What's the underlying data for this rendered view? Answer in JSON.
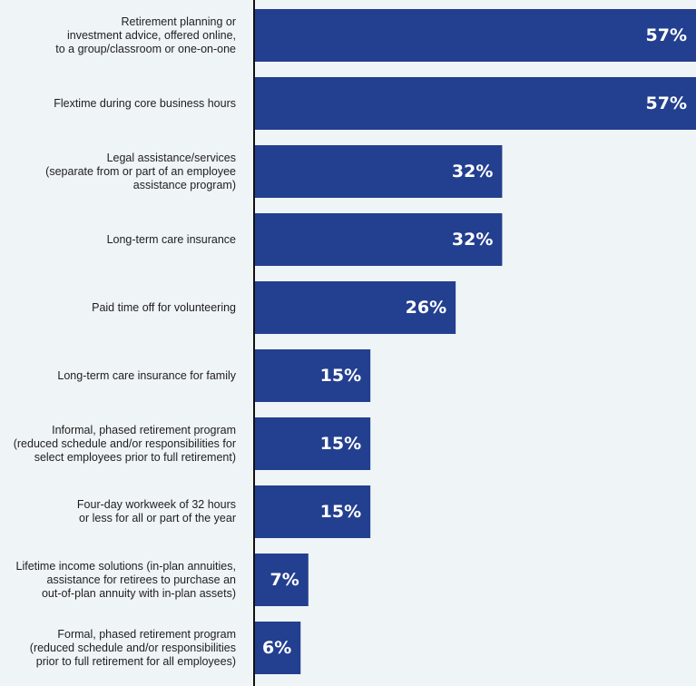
{
  "chart_data": {
    "type": "bar",
    "orientation": "horizontal",
    "categories": [
      "Retirement planning or\ninvestment advice, offered online,\nto a group/classroom or one-on-one",
      "Flextime during core business hours",
      "Legal assistance/services\n(separate from or part of an employee\nassistance program)",
      "Long-term care insurance",
      "Paid time off for volunteering",
      "Long-term care insurance for family",
      "Informal, phased retirement program\n(reduced schedule and/or responsibilities for\nselect employees prior to full retirement)",
      "Four-day workweek of 32 hours\nor less for all or part of the year",
      "Lifetime income solutions (in-plan annuities,\nassistance for retirees to purchase an\nout-of-plan annuity with in-plan assets)",
      "Formal, phased retirement program\n(reduced schedule and/or responsibilities\nprior to full retirement for all employees)"
    ],
    "values": [
      57,
      57,
      32,
      32,
      26,
      15,
      15,
      15,
      7,
      6
    ],
    "value_labels": [
      "57%",
      "57%",
      "32%",
      "32%",
      "26%",
      "15%",
      "15%",
      "15%",
      "7%",
      "6%"
    ],
    "unit": "%",
    "xlim": [
      0,
      57
    ],
    "grid": false,
    "bar_color": "#233f8f",
    "background_color": "#eff4f6",
    "axis_color": "#111111"
  }
}
